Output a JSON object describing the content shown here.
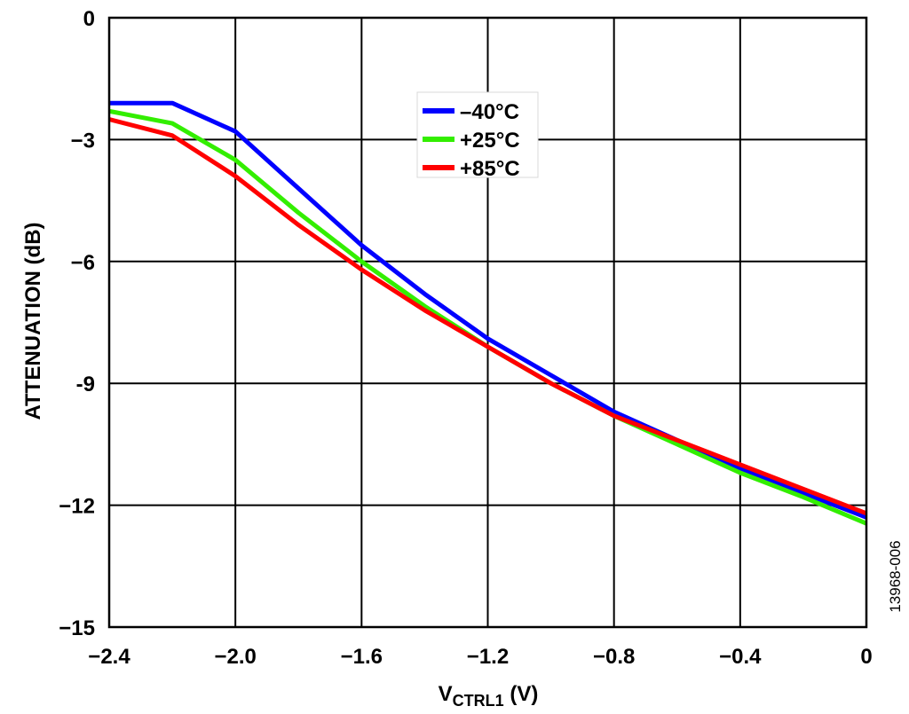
{
  "chart_data": {
    "type": "line",
    "xlabel_main": "V",
    "xlabel_sub": "CTRL1",
    "xlabel_unit": " (V)",
    "ylabel": "ATTENUATION (dB)",
    "figure_id": "13968-006",
    "xlim": [
      -2.4,
      0
    ],
    "ylim": [
      -15,
      0
    ],
    "x_ticks": [
      -2.4,
      -2.0,
      -1.6,
      -1.2,
      -0.8,
      -0.4,
      0
    ],
    "x_tick_labels": [
      "−2.4",
      "−2.0",
      "−1.6",
      "−1.2",
      "−0.8",
      "−0.4",
      "0"
    ],
    "y_ticks": [
      0,
      -3,
      -6,
      -9,
      -12,
      -15
    ],
    "y_tick_labels": [
      "0",
      "−3",
      "−6",
      "-9",
      "−12",
      "−15"
    ],
    "grid": true,
    "legend_position": "top-center",
    "series": [
      {
        "name": "–40°C",
        "color": "#0000FF",
        "x": [
          -2.4,
          -2.2,
          -2.0,
          -1.8,
          -1.6,
          -1.4,
          -1.2,
          -1.0,
          -0.8,
          -0.6,
          -0.4,
          -0.2,
          0
        ],
        "y": [
          -2.1,
          -2.1,
          -2.8,
          -4.2,
          -5.6,
          -6.8,
          -7.9,
          -8.8,
          -9.7,
          -10.4,
          -11.1,
          -11.7,
          -12.3
        ]
      },
      {
        "name": "+25°C",
        "color": "#33EE00",
        "x": [
          -2.4,
          -2.2,
          -2.0,
          -1.8,
          -1.6,
          -1.4,
          -1.2,
          -1.0,
          -0.8,
          -0.6,
          -0.4,
          -0.2,
          0
        ],
        "y": [
          -2.3,
          -2.6,
          -3.5,
          -4.8,
          -6.0,
          -7.1,
          -8.1,
          -9.0,
          -9.8,
          -10.5,
          -11.2,
          -11.8,
          -12.45
        ]
      },
      {
        "name": "+85°C",
        "color": "#FF0000",
        "x": [
          -2.4,
          -2.2,
          -2.0,
          -1.8,
          -1.6,
          -1.4,
          -1.2,
          -1.0,
          -0.8,
          -0.6,
          -0.4,
          -0.2,
          0
        ],
        "y": [
          -2.5,
          -2.9,
          -3.9,
          -5.1,
          -6.2,
          -7.2,
          -8.1,
          -9.0,
          -9.8,
          -10.4,
          -11.0,
          -11.6,
          -12.2
        ]
      }
    ]
  }
}
